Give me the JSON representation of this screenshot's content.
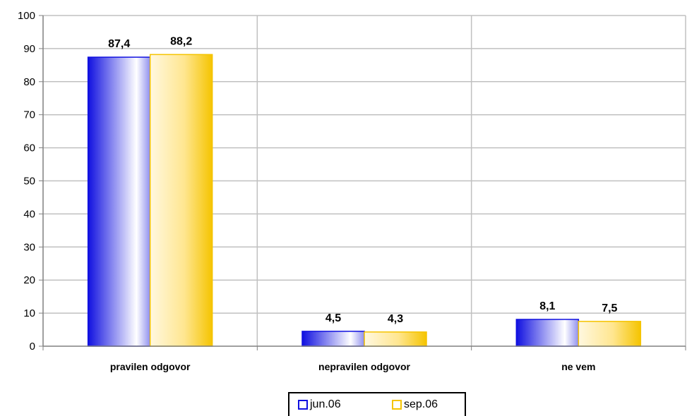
{
  "chart_data": {
    "type": "bar",
    "title": "",
    "xlabel": "",
    "ylabel": "",
    "categories": [
      "pravilen odgovor",
      "nepravilen odgovor",
      "ne vem"
    ],
    "series": [
      {
        "name": "jun.06",
        "values": [
          87.4,
          4.5,
          8.1
        ],
        "labels": [
          "87,4",
          "4,5",
          "8,1"
        ],
        "color": "#1010e0"
      },
      {
        "name": "sep.06",
        "values": [
          88.2,
          4.3,
          7.5
        ],
        "labels": [
          "88,2",
          "4,3",
          "7,5"
        ],
        "color": "#f5c400"
      }
    ],
    "ylim": [
      0,
      100
    ],
    "yticks": [
      0,
      10,
      20,
      30,
      40,
      50,
      60,
      70,
      80,
      90,
      100
    ],
    "grid": true,
    "legend_position": "bottom"
  }
}
